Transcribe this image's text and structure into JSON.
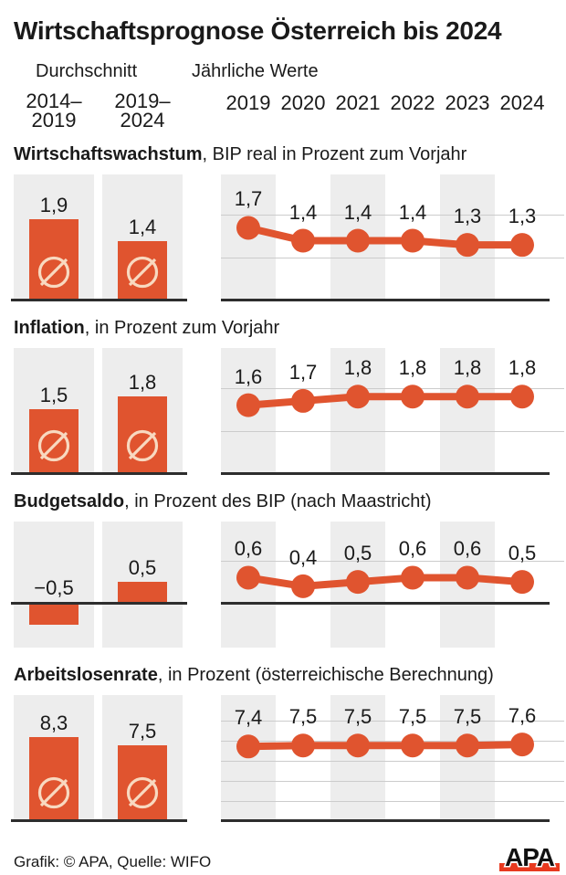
{
  "title": "Wirtschaftsprognose Österreich bis 2024",
  "header": {
    "avg_label": "Durchschnitt",
    "yearly_label": "Jährliche Werte",
    "avg_ranges": [
      {
        "line1": "2014–",
        "line2": "2019"
      },
      {
        "line1": "2019–",
        "line2": "2024"
      }
    ],
    "years": [
      "2019",
      "2020",
      "2021",
      "2022",
      "2023",
      "2024"
    ]
  },
  "colors": {
    "accent_orange": "#e0542f",
    "panel_gray": "#ededed",
    "gridline_gray": "#cccccc",
    "axis_dark": "#2d2d2d",
    "avg_symbol_cream": "#f8d9c0",
    "logo_red": "#e8391f",
    "text_dark": "#1a1a1a"
  },
  "avg_symbol_icon": "diameter-average-sign",
  "chart_data": [
    {
      "type": "bar+line",
      "title_bold": "Wirtschaftswachstum",
      "title_rest": ", BIP real in Prozent zum Vorjahr",
      "avg_categories": [
        "2014–2019",
        "2019–2024"
      ],
      "avg_values": [
        1.9,
        1.4
      ],
      "avg_labels": [
        "1,9",
        "1,4"
      ],
      "x": [
        "2019",
        "2020",
        "2021",
        "2022",
        "2023",
        "2024"
      ],
      "values": [
        1.7,
        1.4,
        1.4,
        1.4,
        1.3,
        1.3
      ],
      "value_labels": [
        "1,7",
        "1,4",
        "1,4",
        "1,4",
        "1,3",
        "1,3"
      ],
      "ylim": [
        0,
        2.95
      ],
      "gridlines": [
        1,
        2
      ],
      "show_avg_symbol": true
    },
    {
      "type": "bar+line",
      "title_bold": "Inflation",
      "title_rest": ", in Prozent zum Vorjahr",
      "avg_categories": [
        "2014–2019",
        "2019–2024"
      ],
      "avg_values": [
        1.5,
        1.8
      ],
      "avg_labels": [
        "1,5",
        "1,8"
      ],
      "x": [
        "2019",
        "2020",
        "2021",
        "2022",
        "2023",
        "2024"
      ],
      "values": [
        1.6,
        1.7,
        1.8,
        1.8,
        1.8,
        1.8
      ],
      "value_labels": [
        "1,6",
        "1,7",
        "1,8",
        "1,8",
        "1,8",
        "1,8"
      ],
      "ylim": [
        0,
        2.93
      ],
      "gridlines": [
        1,
        2
      ],
      "show_avg_symbol": true
    },
    {
      "type": "bar+line",
      "title_bold": "Budgetsaldo",
      "title_rest": ", in Prozent des BIP (nach Maastricht)",
      "avg_categories": [
        "2014–2019",
        "2019–2024"
      ],
      "avg_values": [
        -0.5,
        0.5
      ],
      "avg_labels": [
        "−0,5",
        "0,5"
      ],
      "x": [
        "2019",
        "2020",
        "2021",
        "2022",
        "2023",
        "2024"
      ],
      "values": [
        0.6,
        0.4,
        0.5,
        0.6,
        0.6,
        0.5
      ],
      "value_labels": [
        "0,6",
        "0,4",
        "0,5",
        "0,6",
        "0,6",
        "0,5"
      ],
      "ylim": [
        -1.02,
        1.9
      ],
      "gridlines": [
        1
      ],
      "show_avg_symbol": false
    },
    {
      "type": "bar+line",
      "title_bold": "Arbeitslosenrate",
      "title_rest": ", in Prozent (österreichische Berechnung)",
      "avg_categories": [
        "2014–2019",
        "2019–2024"
      ],
      "avg_values": [
        8.3,
        7.5
      ],
      "avg_labels": [
        "8,3",
        "7,5"
      ],
      "x": [
        "2019",
        "2020",
        "2021",
        "2022",
        "2023",
        "2024"
      ],
      "values": [
        7.4,
        7.5,
        7.5,
        7.5,
        7.5,
        7.6
      ],
      "value_labels": [
        "7,4",
        "7,5",
        "7,5",
        "7,5",
        "7,5",
        "7,6"
      ],
      "ylim": [
        0,
        12.5
      ],
      "gridlines": [
        2,
        4,
        6,
        8,
        10
      ],
      "show_avg_symbol": true
    }
  ],
  "footer": {
    "credit": "Grafik: © APA, Quelle: WIFO",
    "logo_text": "APA"
  }
}
